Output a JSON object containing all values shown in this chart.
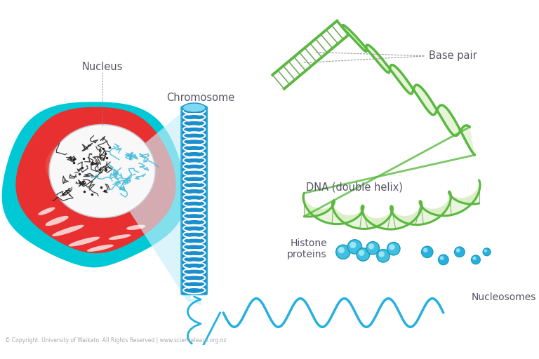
{
  "background_color": "#ffffff",
  "copyright_text": "© Copyright. University of Waikato. All Rights Reserved | www.sciencelearn.org.nz",
  "labels": {
    "nucleus": "Nucleus",
    "chromosome": "Chromosome",
    "dna": "DNA (double helix)",
    "base_pair": "Base pair",
    "histone": "Histone\nproteins",
    "nucleosomes": "Nucleosomes"
  },
  "colors": {
    "cell_outer": "#00c8d4",
    "cell_body_red": "#e83030",
    "cell_body_dark": "#c02020",
    "nucleus_fill": "#f5f5f5",
    "chromosome_blue": "#1a8fcc",
    "chromosome_mid": "#2aacdc",
    "chromosome_light": "#7dd8f0",
    "chromosome_white": "#d8f0fa",
    "dna_green": "#5ab840",
    "dna_light_green": "#8acc60",
    "dna_fill": "#c8e8a0",
    "histone_blue": "#40c0e0",
    "histone_mid": "#80d8f0",
    "histone_light": "#b8eef8",
    "nucleosome_blue": "#25b0e0",
    "label_color": "#555566",
    "white": "#ffffff",
    "light_blue_fill": "#d0f0f8",
    "cell_white_streak": "#ffffff"
  },
  "figure_size": [
    7.68,
    5.12
  ],
  "dpi": 100
}
